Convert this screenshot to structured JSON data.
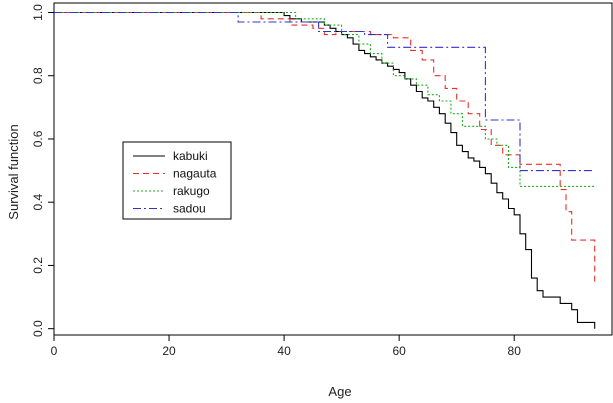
{
  "chart_data": {
    "type": "line",
    "title": "",
    "xlabel": "Age",
    "ylabel": "Survival function",
    "xlim": [
      0,
      97
    ],
    "ylim": [
      -0.02,
      1.03
    ],
    "x_ticks": [
      0,
      20,
      40,
      60,
      80
    ],
    "x_tick_labels": [
      "0",
      "20",
      "40",
      "60",
      "80"
    ],
    "y_ticks": [
      0.0,
      0.2,
      0.4,
      0.6,
      0.8,
      1.0
    ],
    "y_tick_labels": [
      "0.0",
      "0.2",
      "0.4",
      "0.6",
      "0.8",
      "1.0"
    ],
    "grid": false,
    "legend_position": "middle-left",
    "series": [
      {
        "name": "kabuki",
        "color": "#000000",
        "dash": "solid",
        "x": [
          0,
          40,
          41,
          43,
          45,
          47,
          48,
          49,
          50,
          51,
          52,
          53,
          54,
          55,
          56,
          57,
          58,
          59,
          60,
          61,
          62,
          63,
          64,
          65,
          66,
          67,
          68,
          69,
          70,
          71,
          72,
          73,
          74,
          75,
          76,
          77,
          78,
          79,
          80,
          81,
          82,
          83,
          84,
          85,
          86,
          88,
          89,
          90,
          91,
          93,
          94
        ],
        "y": [
          1.0,
          0.99,
          0.98,
          0.97,
          0.97,
          0.96,
          0.95,
          0.94,
          0.93,
          0.92,
          0.9,
          0.88,
          0.87,
          0.86,
          0.85,
          0.84,
          0.83,
          0.82,
          0.81,
          0.79,
          0.77,
          0.75,
          0.73,
          0.72,
          0.7,
          0.68,
          0.65,
          0.62,
          0.58,
          0.56,
          0.54,
          0.53,
          0.51,
          0.49,
          0.46,
          0.43,
          0.41,
          0.38,
          0.36,
          0.3,
          0.25,
          0.16,
          0.12,
          0.1,
          0.1,
          0.08,
          0.08,
          0.06,
          0.02,
          0.02,
          0.0
        ]
      },
      {
        "name": "nagauta",
        "color": "#e8302a",
        "dash": "6,4",
        "x": [
          0,
          36,
          41,
          45,
          47,
          49,
          55,
          59,
          62,
          64,
          66,
          68,
          70,
          72,
          74,
          76,
          78,
          81,
          88,
          89,
          90,
          94
        ],
        "y": [
          1.0,
          0.98,
          0.96,
          0.95,
          0.93,
          0.94,
          0.93,
          0.92,
          0.88,
          0.85,
          0.8,
          0.76,
          0.72,
          0.68,
          0.63,
          0.58,
          0.55,
          0.52,
          0.44,
          0.37,
          0.28,
          0.14
        ]
      },
      {
        "name": "rakugo",
        "color": "#22aa22",
        "dash": "2,2",
        "x": [
          0,
          42,
          47,
          50,
          53,
          55,
          57,
          59,
          61,
          63,
          65,
          67,
          69,
          71,
          73,
          75,
          77,
          79,
          81,
          94
        ],
        "y": [
          1.0,
          0.98,
          0.96,
          0.93,
          0.9,
          0.87,
          0.84,
          0.8,
          0.79,
          0.77,
          0.74,
          0.72,
          0.68,
          0.64,
          0.64,
          0.6,
          0.58,
          0.51,
          0.45,
          0.45
        ]
      },
      {
        "name": "sadou",
        "color": "#3333cc",
        "dash": "8,3,2,3",
        "x": [
          0,
          32,
          46,
          54,
          58,
          75,
          81,
          87,
          94
        ],
        "y": [
          1.0,
          0.97,
          0.94,
          0.93,
          0.89,
          0.66,
          0.5,
          0.5,
          0.5
        ]
      }
    ]
  }
}
